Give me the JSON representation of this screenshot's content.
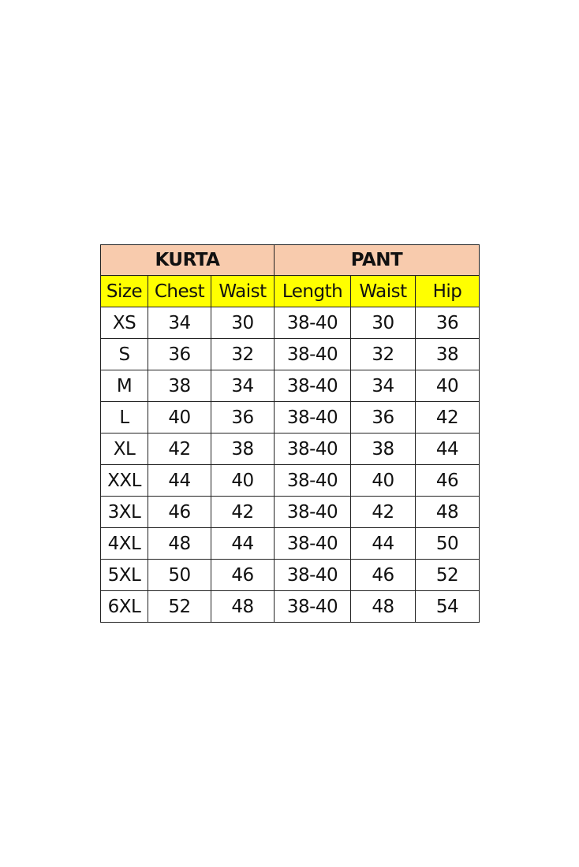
{
  "colors": {
    "group_header": "#F8CBAD",
    "column_header": "#FFFF00"
  },
  "groups": [
    "KURTA",
    "PANT"
  ],
  "columns": [
    "Size",
    "Chest",
    "Waist",
    "Length",
    "Waist",
    "Hip"
  ],
  "rows": [
    [
      "XS",
      "34",
      "30",
      "38-40",
      "30",
      "36"
    ],
    [
      "S",
      "36",
      "32",
      "38-40",
      "32",
      "38"
    ],
    [
      "M",
      "38",
      "34",
      "38-40",
      "34",
      "40"
    ],
    [
      "L",
      "40",
      "36",
      "38-40",
      "36",
      "42"
    ],
    [
      "XL",
      "42",
      "38",
      "38-40",
      "38",
      "44"
    ],
    [
      "XXL",
      "44",
      "40",
      "38-40",
      "40",
      "46"
    ],
    [
      "3XL",
      "46",
      "42",
      "38-40",
      "42",
      "48"
    ],
    [
      "4XL",
      "48",
      "44",
      "38-40",
      "44",
      "50"
    ],
    [
      "5XL",
      "50",
      "46",
      "38-40",
      "46",
      "52"
    ],
    [
      "6XL",
      "52",
      "48",
      "38-40",
      "48",
      "54"
    ]
  ]
}
